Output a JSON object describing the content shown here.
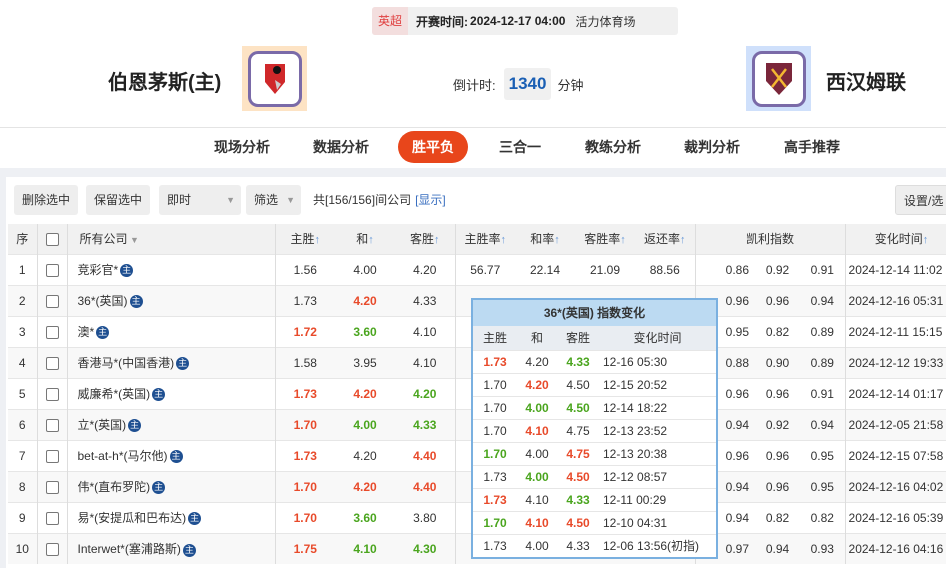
{
  "match": {
    "league": "英超",
    "kickoff_label": "开赛时间:",
    "kickoff": "2024-12-17 04:00",
    "venue": "活力体育场",
    "home": "伯恩茅斯(主)",
    "away": "西汉姆联",
    "countdown_label": "倒计时:",
    "countdown": "1340",
    "countdown_unit": "分钟"
  },
  "nav": [
    "现场分析",
    "数据分析",
    "胜平负",
    "三合一",
    "教练分析",
    "裁判分析",
    "高手推荐"
  ],
  "nav_active": "胜平负",
  "toolbar": {
    "delete": "删除选中",
    "keep": "保留选中",
    "mode": "即时",
    "filter": "筛选",
    "count_prefix": "共",
    "count": "[156/156]",
    "count_suffix": "间公司",
    "show": "[显示]",
    "settings": "设置/选"
  },
  "headers": {
    "idx": "序",
    "company": "所有公司",
    "home": "主胜",
    "draw": "和",
    "away": "客胜",
    "home_rate": "主胜率",
    "draw_rate": "和率",
    "away_rate": "客胜率",
    "return_rate": "返还率",
    "kelly": "凯利指数",
    "time": "变化时间"
  },
  "badge": "主",
  "rows": [
    {
      "n": "1",
      "c": "竞彩官*",
      "o": [
        [
          "1.56",
          ""
        ],
        [
          "4.00",
          ""
        ],
        [
          "4.20",
          ""
        ]
      ],
      "rates": [
        "56.77",
        "22.14",
        "21.09",
        "88.56"
      ],
      "k": [
        "0.86",
        "0.92",
        "0.91"
      ],
      "t": "2024-12-14 11:02"
    },
    {
      "n": "2",
      "c": "36*(英国)",
      "o": [
        [
          "1.73",
          ""
        ],
        [
          "4.20",
          "r"
        ],
        [
          "4.33",
          ""
        ]
      ],
      "rates": [
        "",
        "",
        "",
        ""
      ],
      "k": [
        "0.96",
        "0.96",
        "0.94"
      ],
      "t": "2024-12-16 05:31"
    },
    {
      "n": "3",
      "c": "澳*",
      "o": [
        [
          "1.72",
          "r"
        ],
        [
          "3.60",
          "g"
        ],
        [
          "4.10",
          ""
        ]
      ],
      "rates": [
        "",
        "",
        "",
        ""
      ],
      "k": [
        "0.95",
        "0.82",
        "0.89"
      ],
      "t": "2024-12-11 15:15"
    },
    {
      "n": "4",
      "c": "香港马*(中国香港)",
      "o": [
        [
          "1.58",
          ""
        ],
        [
          "3.95",
          ""
        ],
        [
          "4.10",
          ""
        ]
      ],
      "rates": [
        "",
        "",
        "",
        ""
      ],
      "k": [
        "0.88",
        "0.90",
        "0.89"
      ],
      "t": "2024-12-12 19:33"
    },
    {
      "n": "5",
      "c": "威廉希*(英国)",
      "o": [
        [
          "1.73",
          "r"
        ],
        [
          "4.20",
          "r"
        ],
        [
          "4.20",
          "g"
        ]
      ],
      "rates": [
        "",
        "",
        "",
        ""
      ],
      "k": [
        "0.96",
        "0.96",
        "0.91"
      ],
      "t": "2024-12-14 01:17"
    },
    {
      "n": "6",
      "c": "立*(英国)",
      "o": [
        [
          "1.70",
          "r"
        ],
        [
          "4.00",
          "g"
        ],
        [
          "4.33",
          "g"
        ]
      ],
      "rates": [
        "",
        "",
        "",
        ""
      ],
      "k": [
        "0.94",
        "0.92",
        "0.94"
      ],
      "t": "2024-12-05 21:58"
    },
    {
      "n": "7",
      "c": "bet-at-h*(马尔他)",
      "o": [
        [
          "1.73",
          "r"
        ],
        [
          "4.20",
          ""
        ],
        [
          "4.40",
          "r"
        ]
      ],
      "rates": [
        "",
        "",
        "",
        ""
      ],
      "k": [
        "0.96",
        "0.96",
        "0.95"
      ],
      "t": "2024-12-15 07:58"
    },
    {
      "n": "8",
      "c": "伟*(直布罗陀)",
      "o": [
        [
          "1.70",
          "r"
        ],
        [
          "4.20",
          "r"
        ],
        [
          "4.40",
          "r"
        ]
      ],
      "rates": [
        "",
        "",
        "",
        ""
      ],
      "k": [
        "0.94",
        "0.96",
        "0.95"
      ],
      "t": "2024-12-16 04:02"
    },
    {
      "n": "9",
      "c": "易*(安提瓜和巴布达)",
      "o": [
        [
          "1.70",
          "r"
        ],
        [
          "3.60",
          "g"
        ],
        [
          "3.80",
          ""
        ]
      ],
      "rates": [
        "",
        "",
        "",
        ""
      ],
      "k": [
        "0.94",
        "0.82",
        "0.82"
      ],
      "t": "2024-12-16 05:39"
    },
    {
      "n": "10",
      "c": "Interwet*(塞浦路斯)",
      "o": [
        [
          "1.75",
          "r"
        ],
        [
          "4.10",
          "g"
        ],
        [
          "4.30",
          "g"
        ]
      ],
      "rates": [
        "",
        "",
        "",
        ""
      ],
      "k": [
        "0.97",
        "0.94",
        "0.93"
      ],
      "t": "2024-12-16 04:16"
    }
  ],
  "popup": {
    "title": "36*(英国) 指数变化",
    "headers": [
      "主胜",
      "和",
      "客胜",
      "变化时间"
    ],
    "rows": [
      [
        [
          "1.73",
          "r"
        ],
        [
          "4.20",
          ""
        ],
        [
          "4.33",
          "g"
        ],
        "12-16 05:30"
      ],
      [
        [
          "1.70",
          ""
        ],
        [
          "4.20",
          "r"
        ],
        [
          "4.50",
          ""
        ],
        "12-15 20:52"
      ],
      [
        [
          "1.70",
          ""
        ],
        [
          "4.00",
          "g"
        ],
        [
          "4.50",
          "g"
        ],
        "12-14 18:22"
      ],
      [
        [
          "1.70",
          ""
        ],
        [
          "4.10",
          "r"
        ],
        [
          "4.75",
          ""
        ],
        "12-13 23:52"
      ],
      [
        [
          "1.70",
          "g"
        ],
        [
          "4.00",
          ""
        ],
        [
          "4.75",
          "r"
        ],
        "12-13 20:38"
      ],
      [
        [
          "1.73",
          ""
        ],
        [
          "4.00",
          "g"
        ],
        [
          "4.50",
          "r"
        ],
        "12-12 08:57"
      ],
      [
        [
          "1.73",
          "r"
        ],
        [
          "4.10",
          ""
        ],
        [
          "4.33",
          "g"
        ],
        "12-11 00:29"
      ],
      [
        [
          "1.70",
          "g"
        ],
        [
          "4.10",
          "r"
        ],
        [
          "4.50",
          "r"
        ],
        "12-10 04:31"
      ],
      [
        [
          "1.73",
          ""
        ],
        [
          "4.00",
          ""
        ],
        [
          "4.33",
          ""
        ],
        "12-06 13:56(初指)"
      ]
    ]
  },
  "colors": {
    "accent": "#e8461b",
    "up": "#e84a2a",
    "down": "#4aa51e",
    "countdown": "#1a5fb4"
  }
}
